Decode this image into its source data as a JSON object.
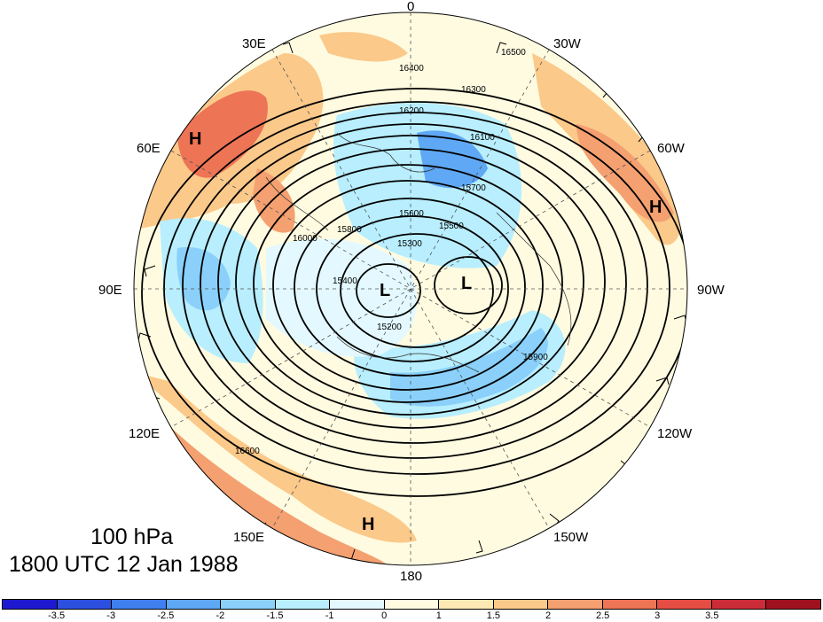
{
  "title": {
    "level": "100 hPa",
    "time": "1800 UTC 12 Jan 1988"
  },
  "longitude_labels": {
    "lon_0": "0",
    "lon_30w": "30W",
    "lon_60w": "60W",
    "lon_90w": "90W",
    "lon_120w": "120W",
    "lon_150w": "150W",
    "lon_180": "180",
    "lon_150e": "150E",
    "lon_120e": "120E",
    "lon_90e": "90E",
    "lon_60e": "60E",
    "lon_30e": "30E"
  },
  "pressure_centers": {
    "high_1": "H",
    "high_2": "H",
    "high_3": "H",
    "low_1": "L",
    "low_2": "L"
  },
  "contour_labels": [
    "16500",
    "16400",
    "16300",
    "16200",
    "16100",
    "16000",
    "15900",
    "15800",
    "15700",
    "15600",
    "15500",
    "15400",
    "15300",
    "15200",
    "16600"
  ],
  "colorbar": {
    "colors": [
      "#1e19d1",
      "#2c4fe0",
      "#3f7ff0",
      "#5fa8f5",
      "#8ad0fa",
      "#b8eefe",
      "#e3f9ff",
      "#fffbe0",
      "#fde9b4",
      "#fbc98a",
      "#f4a070",
      "#ee7456",
      "#e54d45",
      "#cc2c38",
      "#a0111f"
    ],
    "ticks": [
      "-3.5",
      "-3",
      "-2.5",
      "-2",
      "-1.5",
      "-1",
      "0",
      "1",
      "1.5",
      "2",
      "2.5",
      "3",
      "3.5"
    ]
  }
}
